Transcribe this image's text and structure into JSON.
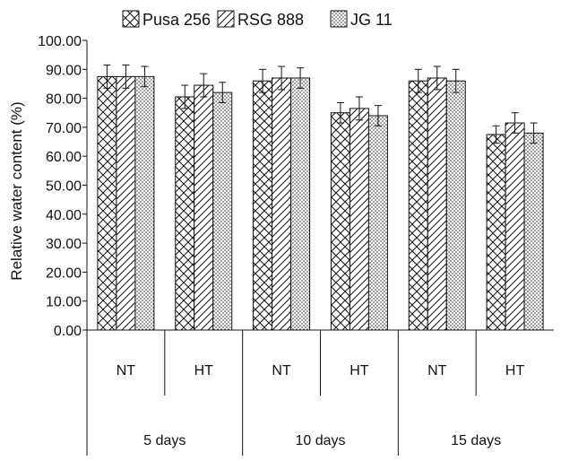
{
  "chart_data": {
    "type": "bar",
    "title": "",
    "xlabel": "",
    "ylabel": "Relative water content (%)",
    "ylim": [
      0,
      100
    ],
    "yticks": [
      "0.00",
      "10.00",
      "20.00",
      "30.00",
      "40.00",
      "50.00",
      "60.00",
      "70.00",
      "80.00",
      "90.00",
      "100.00"
    ],
    "groups": [
      "5 days",
      "10 days",
      "15 days"
    ],
    "categories": [
      "NT",
      "HT",
      "NT",
      "HT",
      "NT",
      "HT"
    ],
    "legend_position": "top",
    "series": [
      {
        "name": "Pusa 256",
        "pattern": "crosshatch",
        "values": [
          87.5,
          80.5,
          86.0,
          75.0,
          86.0,
          67.5
        ],
        "errors": [
          4.0,
          4.0,
          4.0,
          3.5,
          4.0,
          3.0
        ]
      },
      {
        "name": "RSG 888",
        "pattern": "diagonal",
        "values": [
          87.5,
          84.5,
          87.0,
          76.5,
          87.0,
          71.5
        ],
        "errors": [
          4.0,
          4.0,
          4.0,
          4.0,
          4.0,
          3.5
        ]
      },
      {
        "name": "JG 11",
        "pattern": "dots",
        "values": [
          87.5,
          82.0,
          87.0,
          74.0,
          86.0,
          68.0
        ],
        "errors": [
          3.5,
          3.5,
          3.5,
          3.5,
          4.0,
          3.5
        ]
      }
    ]
  }
}
